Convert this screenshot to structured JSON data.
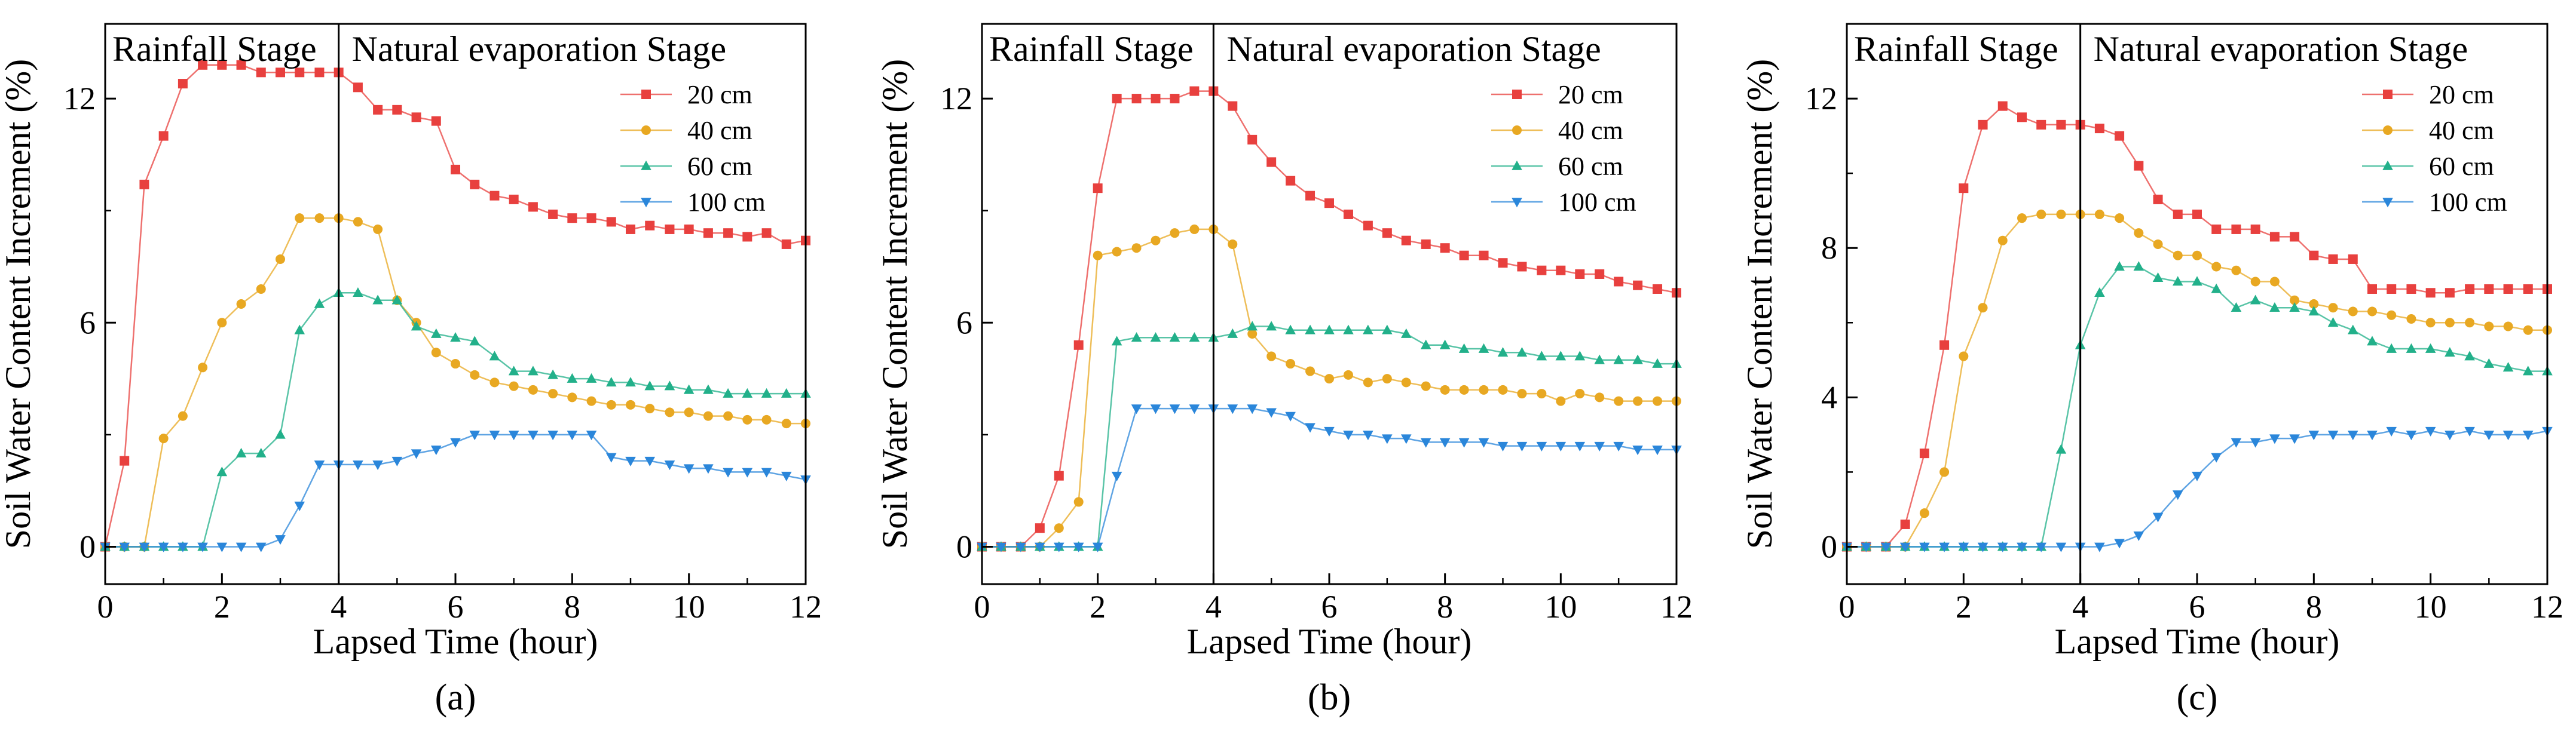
{
  "chart_data": [
    {
      "type": "line",
      "panel_label": "(a)",
      "xlabel": "Lapsed Time (hour)",
      "ylabel": "Soil Water Content Increment (%)",
      "xlim": [
        0,
        12
      ],
      "ylim": [
        -1,
        14
      ],
      "xticks": [
        0,
        2,
        4,
        6,
        8,
        10,
        12
      ],
      "yticks": [
        0,
        6,
        12
      ],
      "stage_divider_x": 4,
      "stage_labels": [
        "Rainfall Stage",
        "Natural evaporation Stage"
      ],
      "legend_position": "top-right",
      "series": [
        {
          "name": "20 cm",
          "color": "#e8403e",
          "marker": "square",
          "x": [
            0,
            0.33,
            0.67,
            1,
            1.33,
            1.67,
            2,
            2.33,
            2.67,
            3,
            3.33,
            3.67,
            4,
            4.33,
            4.67,
            5,
            5.33,
            5.67,
            6,
            6.33,
            6.67,
            7,
            7.33,
            7.67,
            8,
            8.33,
            8.67,
            9,
            9.33,
            9.67,
            10,
            10.33,
            10.67,
            11,
            11.33,
            11.67,
            12
          ],
          "y": [
            0,
            2.3,
            9.7,
            11,
            12.4,
            12.9,
            12.9,
            12.9,
            12.7,
            12.7,
            12.7,
            12.7,
            12.7,
            12.3,
            11.7,
            11.7,
            11.5,
            11.4,
            10.1,
            9.7,
            9.4,
            9.3,
            9.1,
            8.9,
            8.8,
            8.8,
            8.7,
            8.5,
            8.6,
            8.5,
            8.5,
            8.4,
            8.4,
            8.3,
            8.4,
            8.1,
            8.2
          ]
        },
        {
          "name": "40 cm",
          "color": "#e8a822",
          "marker": "circle",
          "x": [
            0,
            0.33,
            0.67,
            1,
            1.33,
            1.67,
            2,
            2.33,
            2.67,
            3,
            3.33,
            3.67,
            4,
            4.33,
            4.67,
            5,
            5.33,
            5.67,
            6,
            6.33,
            6.67,
            7,
            7.33,
            7.67,
            8,
            8.33,
            8.67,
            9,
            9.33,
            9.67,
            10,
            10.33,
            10.67,
            11,
            11.33,
            11.67,
            12
          ],
          "y": [
            0,
            0,
            0,
            2.9,
            3.5,
            4.8,
            6,
            6.5,
            6.9,
            7.7,
            8.8,
            8.8,
            8.8,
            8.7,
            8.5,
            6.6,
            6,
            5.2,
            4.9,
            4.6,
            4.4,
            4.3,
            4.2,
            4.1,
            4,
            3.9,
            3.8,
            3.8,
            3.7,
            3.6,
            3.6,
            3.5,
            3.5,
            3.4,
            3.4,
            3.3,
            3.3
          ]
        },
        {
          "name": "60 cm",
          "color": "#22b08a",
          "marker": "triangle-up",
          "x": [
            0,
            0.33,
            0.67,
            1,
            1.33,
            1.67,
            2,
            2.33,
            2.67,
            3,
            3.33,
            3.67,
            4,
            4.33,
            4.67,
            5,
            5.33,
            5.67,
            6,
            6.33,
            6.67,
            7,
            7.33,
            7.67,
            8,
            8.33,
            8.67,
            9,
            9.33,
            9.67,
            10,
            10.33,
            10.67,
            11,
            11.33,
            11.67,
            12
          ],
          "y": [
            0,
            0,
            0,
            0,
            0,
            0,
            2,
            2.5,
            2.5,
            3,
            5.8,
            6.5,
            6.8,
            6.8,
            6.6,
            6.6,
            5.9,
            5.7,
            5.6,
            5.5,
            5.1,
            4.7,
            4.7,
            4.6,
            4.5,
            4.5,
            4.4,
            4.4,
            4.3,
            4.3,
            4.2,
            4.2,
            4.1,
            4.1,
            4.1,
            4.1,
            4.1
          ]
        },
        {
          "name": "100 cm",
          "color": "#2a86da",
          "marker": "triangle-down",
          "x": [
            0,
            0.33,
            0.67,
            1,
            1.33,
            1.67,
            2,
            2.33,
            2.67,
            3,
            3.33,
            3.67,
            4,
            4.33,
            4.67,
            5,
            5.33,
            5.67,
            6,
            6.33,
            6.67,
            7,
            7.33,
            7.67,
            8,
            8.33,
            8.67,
            9,
            9.33,
            9.67,
            10,
            10.33,
            10.67,
            11,
            11.33,
            11.67,
            12
          ],
          "y": [
            0,
            0,
            0,
            0,
            0,
            0,
            0,
            0,
            0,
            0.2,
            1.1,
            2.2,
            2.2,
            2.2,
            2.2,
            2.3,
            2.5,
            2.6,
            2.8,
            3,
            3,
            3,
            3,
            3,
            3,
            3,
            2.4,
            2.3,
            2.3,
            2.2,
            2.1,
            2.1,
            2,
            2,
            2,
            1.9,
            1.8
          ]
        }
      ]
    },
    {
      "type": "line",
      "panel_label": "(b)",
      "xlabel": "Lapsed Time (hour)",
      "ylabel": "Soil Water Content Increment (%)",
      "xlim": [
        0,
        12
      ],
      "ylim": [
        -1,
        14
      ],
      "xticks": [
        0,
        2,
        4,
        6,
        8,
        10,
        12
      ],
      "yticks": [
        0,
        6,
        12
      ],
      "stage_divider_x": 4,
      "stage_labels": [
        "Rainfall Stage",
        "Natural evaporation Stage"
      ],
      "legend_position": "top-right",
      "series": [
        {
          "name": "20 cm",
          "color": "#e8403e",
          "marker": "square",
          "x": [
            0,
            0.33,
            0.67,
            1,
            1.33,
            1.67,
            2,
            2.33,
            2.67,
            3,
            3.33,
            3.67,
            4,
            4.33,
            4.67,
            5,
            5.33,
            5.67,
            6,
            6.33,
            6.67,
            7,
            7.33,
            7.67,
            8,
            8.33,
            8.67,
            9,
            9.33,
            9.67,
            10,
            10.33,
            10.67,
            11,
            11.33,
            11.67,
            12
          ],
          "y": [
            0,
            0,
            0,
            0.5,
            1.9,
            5.4,
            9.6,
            12,
            12,
            12,
            12,
            12.2,
            12.2,
            11.8,
            10.9,
            10.3,
            9.8,
            9.4,
            9.2,
            8.9,
            8.6,
            8.4,
            8.2,
            8.1,
            8,
            7.8,
            7.8,
            7.6,
            7.5,
            7.4,
            7.4,
            7.3,
            7.3,
            7.1,
            7,
            6.9,
            6.8
          ]
        },
        {
          "name": "40 cm",
          "color": "#e8a822",
          "marker": "circle",
          "x": [
            0,
            0.33,
            0.67,
            1,
            1.33,
            1.67,
            2,
            2.33,
            2.67,
            3,
            3.33,
            3.67,
            4,
            4.33,
            4.67,
            5,
            5.33,
            5.67,
            6,
            6.33,
            6.67,
            7,
            7.33,
            7.67,
            8,
            8.33,
            8.67,
            9,
            9.33,
            9.67,
            10,
            10.33,
            10.67,
            11,
            11.33,
            11.67,
            12
          ],
          "y": [
            0,
            0,
            0,
            0,
            0.5,
            1.2,
            7.8,
            7.9,
            8,
            8.2,
            8.4,
            8.5,
            8.5,
            8.1,
            5.7,
            5.1,
            4.9,
            4.7,
            4.5,
            4.6,
            4.4,
            4.5,
            4.4,
            4.3,
            4.2,
            4.2,
            4.2,
            4.2,
            4.1,
            4.1,
            3.9,
            4.1,
            4,
            3.9,
            3.9,
            3.9,
            3.9
          ]
        },
        {
          "name": "60 cm",
          "color": "#22b08a",
          "marker": "triangle-up",
          "x": [
            0,
            0.33,
            0.67,
            1,
            1.33,
            1.67,
            2,
            2.33,
            2.67,
            3,
            3.33,
            3.67,
            4,
            4.33,
            4.67,
            5,
            5.33,
            5.67,
            6,
            6.33,
            6.67,
            7,
            7.33,
            7.67,
            8,
            8.33,
            8.67,
            9,
            9.33,
            9.67,
            10,
            10.33,
            10.67,
            11,
            11.33,
            11.67,
            12
          ],
          "y": [
            0,
            0,
            0,
            0,
            0,
            0,
            0,
            5.5,
            5.6,
            5.6,
            5.6,
            5.6,
            5.6,
            5.7,
            5.9,
            5.9,
            5.8,
            5.8,
            5.8,
            5.8,
            5.8,
            5.8,
            5.7,
            5.4,
            5.4,
            5.3,
            5.3,
            5.2,
            5.2,
            5.1,
            5.1,
            5.1,
            5,
            5,
            5,
            4.9,
            4.9
          ]
        },
        {
          "name": "100 cm",
          "color": "#2a86da",
          "marker": "triangle-down",
          "x": [
            0,
            0.33,
            0.67,
            1,
            1.33,
            1.67,
            2,
            2.33,
            2.67,
            3,
            3.33,
            3.67,
            4,
            4.33,
            4.67,
            5,
            5.33,
            5.67,
            6,
            6.33,
            6.67,
            7,
            7.33,
            7.67,
            8,
            8.33,
            8.67,
            9,
            9.33,
            9.67,
            10,
            10.33,
            10.67,
            11,
            11.33,
            11.67,
            12
          ],
          "y": [
            0,
            0,
            0,
            0,
            0,
            0,
            0,
            1.9,
            3.7,
            3.7,
            3.7,
            3.7,
            3.7,
            3.7,
            3.7,
            3.6,
            3.5,
            3.2,
            3.1,
            3,
            3,
            2.9,
            2.9,
            2.8,
            2.8,
            2.8,
            2.8,
            2.7,
            2.7,
            2.7,
            2.7,
            2.7,
            2.7,
            2.7,
            2.6,
            2.6,
            2.6
          ]
        }
      ]
    },
    {
      "type": "line",
      "panel_label": "(c)",
      "xlabel": "Lapsed Time (hour)",
      "ylabel": "Soil Water Content Increment (%)",
      "xlim": [
        0,
        12
      ],
      "ylim": [
        -1,
        14
      ],
      "xticks": [
        0,
        2,
        4,
        6,
        8,
        10,
        12
      ],
      "yticks": [
        0,
        4,
        8,
        12
      ],
      "stage_divider_x": 4,
      "stage_labels": [
        "Rainfall Stage",
        "Natural evaporation Stage"
      ],
      "legend_position": "top-right",
      "series": [
        {
          "name": "20 cm",
          "color": "#e8403e",
          "marker": "square",
          "x": [
            0,
            0.33,
            0.67,
            1,
            1.33,
            1.67,
            2,
            2.33,
            2.67,
            3,
            3.33,
            3.67,
            4,
            4.33,
            4.67,
            5,
            5.33,
            5.67,
            6,
            6.33,
            6.67,
            7,
            7.33,
            7.67,
            8,
            8.33,
            8.67,
            9,
            9.33,
            9.67,
            10,
            10.33,
            10.67,
            11,
            11.33,
            11.67,
            12
          ],
          "y": [
            0,
            0,
            0,
            0.6,
            2.5,
            5.4,
            9.6,
            11.3,
            11.8,
            11.5,
            11.3,
            11.3,
            11.3,
            11.2,
            11,
            10.2,
            9.3,
            8.9,
            8.9,
            8.5,
            8.5,
            8.5,
            8.3,
            8.3,
            7.8,
            7.7,
            7.7,
            6.9,
            6.9,
            6.9,
            6.8,
            6.8,
            6.9,
            6.9,
            6.9,
            6.9,
            6.9
          ]
        },
        {
          "name": "40 cm",
          "color": "#e8a822",
          "marker": "circle",
          "x": [
            0,
            0.33,
            0.67,
            1,
            1.33,
            1.67,
            2,
            2.33,
            2.67,
            3,
            3.33,
            3.67,
            4,
            4.33,
            4.67,
            5,
            5.33,
            5.67,
            6,
            6.33,
            6.67,
            7,
            7.33,
            7.67,
            8,
            8.33,
            8.67,
            9,
            9.33,
            9.67,
            10,
            10.33,
            10.67,
            11,
            11.33,
            11.67,
            12
          ],
          "y": [
            0,
            0,
            0,
            0,
            0.9,
            2,
            5.1,
            6.4,
            8.2,
            8.8,
            8.9,
            8.9,
            8.9,
            8.9,
            8.8,
            8.4,
            8.1,
            7.8,
            7.8,
            7.5,
            7.4,
            7.1,
            7.1,
            6.6,
            6.5,
            6.4,
            6.3,
            6.3,
            6.2,
            6.1,
            6,
            6,
            6,
            5.9,
            5.9,
            5.8,
            5.8
          ]
        },
        {
          "name": "60 cm",
          "color": "#22b08a",
          "marker": "triangle-up",
          "x": [
            0,
            0.33,
            0.67,
            1,
            1.33,
            1.67,
            2,
            2.33,
            2.67,
            3,
            3.33,
            3.67,
            4,
            4.33,
            4.67,
            5,
            5.33,
            5.67,
            6,
            6.33,
            6.67,
            7,
            7.33,
            7.67,
            8,
            8.33,
            8.67,
            9,
            9.33,
            9.67,
            10,
            10.33,
            10.67,
            11,
            11.33,
            11.67,
            12
          ],
          "y": [
            0,
            0,
            0,
            0,
            0,
            0,
            0,
            0,
            0,
            0,
            0,
            2.6,
            5.4,
            6.8,
            7.5,
            7.5,
            7.2,
            7.1,
            7.1,
            6.9,
            6.4,
            6.6,
            6.4,
            6.4,
            6.3,
            6,
            5.8,
            5.5,
            5.3,
            5.3,
            5.3,
            5.2,
            5.1,
            4.9,
            4.8,
            4.7,
            4.7
          ]
        },
        {
          "name": "100 cm",
          "color": "#2a86da",
          "marker": "triangle-down",
          "x": [
            0,
            0.33,
            0.67,
            1,
            1.33,
            1.67,
            2,
            2.33,
            2.67,
            3,
            3.33,
            3.67,
            4,
            4.33,
            4.67,
            5,
            5.33,
            5.67,
            6,
            6.33,
            6.67,
            7,
            7.33,
            7.67,
            8,
            8.33,
            8.67,
            9,
            9.33,
            9.67,
            10,
            10.33,
            10.67,
            11,
            11.33,
            11.67,
            12
          ],
          "y": [
            0,
            0,
            0,
            0,
            0,
            0,
            0,
            0,
            0,
            0,
            0,
            0,
            0,
            0,
            0.1,
            0.3,
            0.8,
            1.4,
            1.9,
            2.4,
            2.8,
            2.8,
            2.9,
            2.9,
            3,
            3,
            3,
            3,
            3.1,
            3,
            3.1,
            3,
            3.1,
            3,
            3,
            3,
            3.1
          ]
        }
      ]
    }
  ]
}
